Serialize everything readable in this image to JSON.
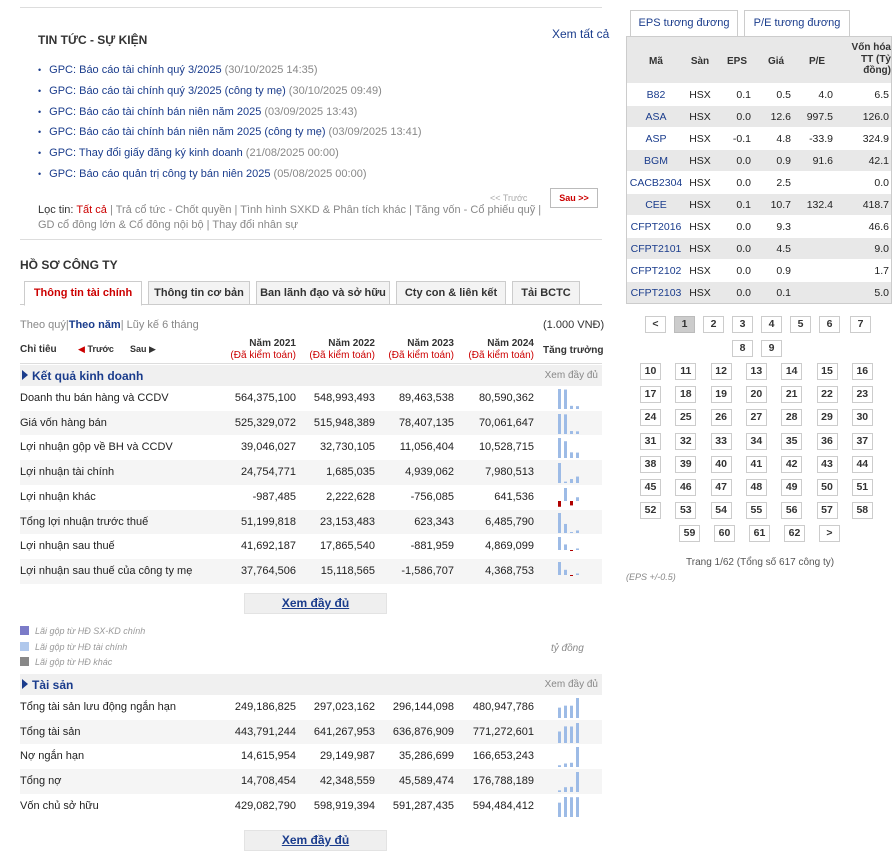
{
  "news": {
    "title": "TIN TỨC - SỰ KIỆN",
    "view_all": "Xem tất cả",
    "items": [
      {
        "title": "GPC: Báo cáo tài chính quý 3/2025",
        "date": "(30/10/2025 14:35)"
      },
      {
        "title": "GPC: Báo cáo tài chính quý 3/2025 (công ty mẹ)",
        "date": "(30/10/2025 09:49)"
      },
      {
        "title": "GPC: Báo cáo tài chính bán niên năm 2025",
        "date": "(03/09/2025 13:43)"
      },
      {
        "title": "GPC: Báo cáo tài chính bán niên năm 2025 (công ty mẹ)",
        "date": "(03/09/2025 13:41)"
      },
      {
        "title": "GPC: Thay đổi giấy đăng ký kinh doanh",
        "date": "(21/08/2025 00:00)"
      },
      {
        "title": "GPC: Báo cáo quản trị công ty bán niên 2025",
        "date": "(05/08/2025 00:00)"
      }
    ],
    "prev": "<< Trước",
    "next": "Sau >>",
    "filter": {
      "label": "Lọc tin:",
      "all": "Tất cả",
      "opts": [
        "Trả cổ tức - Chốt quyền",
        "Tình hình SXKD & Phân tích khác",
        "Tăng vốn - Cổ phiếu quỹ",
        "GD cổ đông lớn & Cổ đông nội bộ",
        "Thay đổi nhân sự"
      ]
    }
  },
  "profile": {
    "title": "HỒ SƠ CÔNG TY",
    "tabs": [
      "Thông tin tài chính",
      "Thông tin cơ bản",
      "Ban lãnh đạo và sở hữu",
      "Cty con & liên kết",
      "Tải BCTC"
    ],
    "period": {
      "quarter": "Theo quý",
      "year": "Theo năm",
      "cumulative": "Lũy kế 6 tháng"
    },
    "unit": "(1.000 VNĐ)",
    "chi_tieu": "Chỉ tiêu",
    "prev": "Trước",
    "next": "Sau",
    "years": [
      {
        "year": "Năm 2021",
        "audit": "(Đã kiểm toán)"
      },
      {
        "year": "Năm 2022",
        "audit": "(Đã kiểm toán)"
      },
      {
        "year": "Năm 2023",
        "audit": "(Đã kiểm toán)"
      },
      {
        "year": "Năm 2024",
        "audit": "(Đã kiểm toán)"
      }
    ],
    "trend": "Tăng trưởng",
    "view_full": "Xem đầy đủ"
  },
  "kqkd": {
    "name": "Kết quả kinh doanh",
    "more": "Xem đầy đủ",
    "rows": [
      {
        "label": "Doanh thu bán hàng và CCDV",
        "values": [
          "564,375,100",
          "548,993,493",
          "89,463,538",
          "80,590,362"
        ],
        "raw": [
          564375100,
          548993493,
          89463538,
          80590362
        ]
      },
      {
        "label": "Giá vốn hàng bán",
        "values": [
          "525,329,072",
          "515,948,389",
          "78,407,135",
          "70,061,647"
        ],
        "raw": [
          525329072,
          515948389,
          78407135,
          70061647
        ]
      },
      {
        "label": "Lợi nhuận gộp về BH và CCDV",
        "values": [
          "39,046,027",
          "32,730,105",
          "11,056,404",
          "10,528,715"
        ],
        "raw": [
          39046027,
          32730105,
          11056404,
          10528715
        ]
      },
      {
        "label": "Lợi nhuận tài chính",
        "values": [
          "24,754,771",
          "1,685,035",
          "4,939,062",
          "7,980,513"
        ],
        "raw": [
          24754771,
          1685035,
          4939062,
          7980513
        ]
      },
      {
        "label": "Lợi nhuận khác",
        "values": [
          "-987,485",
          "2,222,628",
          "-756,085",
          "641,536"
        ],
        "raw": [
          -987485,
          2222628,
          -756085,
          641536
        ]
      },
      {
        "label": "Tổng lợi nhuận trước thuế",
        "values": [
          "51,199,818",
          "23,153,483",
          "623,343",
          "6,485,790"
        ],
        "raw": [
          51199818,
          23153483,
          623343,
          6485790
        ]
      },
      {
        "label": "Lợi nhuận sau thuế",
        "values": [
          "41,692,187",
          "17,865,540",
          "-881,959",
          "4,869,099"
        ],
        "raw": [
          41692187,
          17865540,
          -881959,
          4869099
        ]
      },
      {
        "label": "Lợi nhuận sau thuế của công ty mẹ",
        "values": [
          "37,764,506",
          "15,118,565",
          "-1,586,707",
          "4,368,753"
        ],
        "raw": [
          37764506,
          15118565,
          -1586707,
          4368753
        ]
      }
    ]
  },
  "legend": {
    "items": [
      "Lãi gộp từ HĐ SX-KD chính",
      "Lãi gộp từ HĐ tài chính",
      "Lãi gộp từ HĐ khác"
    ],
    "colors": [
      "#7b7bc8",
      "#b0c8ec",
      "#888888"
    ],
    "unit": "tỷ đồng"
  },
  "taisan": {
    "name": "Tài sản",
    "more": "Xem đầy đủ",
    "rows": [
      {
        "label": "Tổng tài sản lưu động ngắn hạn",
        "values": [
          "249,186,825",
          "297,023,162",
          "296,144,098",
          "480,947,786"
        ],
        "raw": [
          249186825,
          297023162,
          296144098,
          480947786
        ]
      },
      {
        "label": "Tổng tài sản",
        "values": [
          "443,791,244",
          "641,267,953",
          "636,876,909",
          "771,272,601"
        ],
        "raw": [
          443791244,
          641267953,
          636876909,
          771272601
        ]
      },
      {
        "label": "Nợ ngắn hạn",
        "values": [
          "14,615,954",
          "29,149,987",
          "35,286,699",
          "166,653,243"
        ],
        "raw": [
          14615954,
          29149987,
          35286699,
          166653243
        ]
      },
      {
        "label": "Tổng nợ",
        "values": [
          "14,708,454",
          "42,348,559",
          "45,589,474",
          "176,788,189"
        ],
        "raw": [
          14708454,
          42348559,
          45589474,
          176788189
        ]
      },
      {
        "label": "Vốn chủ sở hữu",
        "values": [
          "429,082,790",
          "598,919,394",
          "591,287,435",
          "594,484,412"
        ],
        "raw": [
          429082790,
          598919394,
          591287435,
          594484412
        ]
      }
    ]
  },
  "peers": {
    "tabs": [
      "EPS tương đương",
      "P/E tương đương"
    ],
    "headers": [
      "Mã",
      "Sàn",
      "EPS",
      "Giá",
      "P/E",
      "Vốn hóa TT (Tỷ đồng)"
    ],
    "rows": [
      {
        "code": "B82",
        "ex": "HSX",
        "eps": "0.1",
        "price": "0.5",
        "pe": "4.0",
        "cap": "6.5"
      },
      {
        "code": "ASA",
        "ex": "HSX",
        "eps": "0.0",
        "price": "12.6",
        "pe": "997.5",
        "cap": "126.0"
      },
      {
        "code": "ASP",
        "ex": "HSX",
        "eps": "-0.1",
        "price": "4.8",
        "pe": "-33.9",
        "cap": "324.9"
      },
      {
        "code": "BGM",
        "ex": "HSX",
        "eps": "0.0",
        "price": "0.9",
        "pe": "91.6",
        "cap": "42.1"
      },
      {
        "code": "CACB2304",
        "ex": "HSX",
        "eps": "0.0",
        "price": "2.5",
        "pe": "",
        "cap": "0.0"
      },
      {
        "code": "CEE",
        "ex": "HSX",
        "eps": "0.1",
        "price": "10.7",
        "pe": "132.4",
        "cap": "418.7"
      },
      {
        "code": "CFPT2016",
        "ex": "HSX",
        "eps": "0.0",
        "price": "9.3",
        "pe": "",
        "cap": "46.6"
      },
      {
        "code": "CFPT2101",
        "ex": "HSX",
        "eps": "0.0",
        "price": "4.5",
        "pe": "",
        "cap": "9.0"
      },
      {
        "code": "CFPT2102",
        "ex": "HSX",
        "eps": "0.0",
        "price": "0.9",
        "pe": "",
        "cap": "1.7"
      },
      {
        "code": "CFPT2103",
        "ex": "HSX",
        "eps": "0.0",
        "price": "0.1",
        "pe": "",
        "cap": "5.0"
      }
    ],
    "pager": {
      "prev": "<",
      "next": ">",
      "current": "1",
      "info": "Trang 1/62 (Tổng số 617 công ty)"
    },
    "eps_note": "(EPS +/-0.5)"
  }
}
